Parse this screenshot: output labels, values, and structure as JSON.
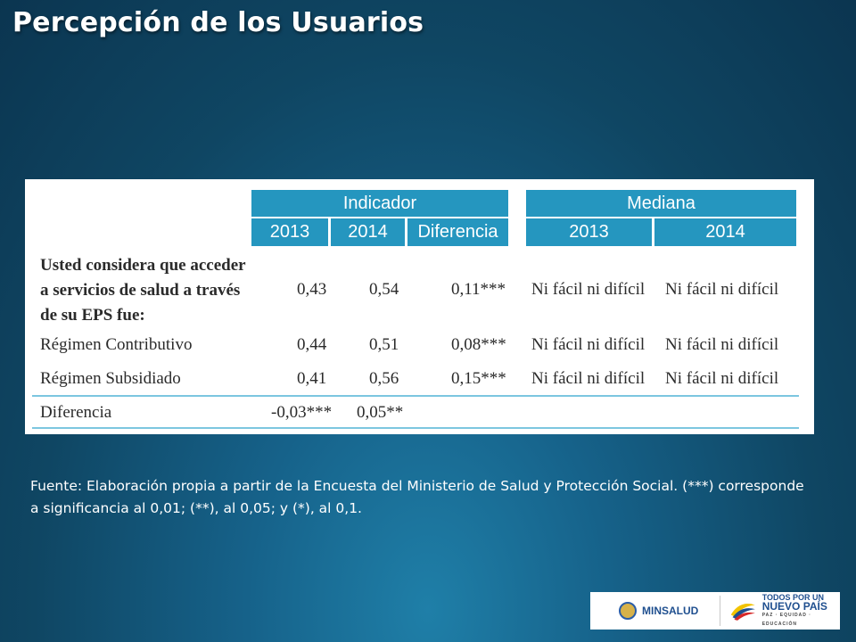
{
  "title": "Percepción de los Usuarios",
  "table": {
    "group_indicador": "Indicador",
    "group_mediana": "Mediana",
    "col_ind_2013": "2013",
    "col_ind_2014": "2014",
    "col_diferencia": "Diferencia",
    "col_med_2013": "2013",
    "col_med_2014": "2014",
    "rows": [
      {
        "label": "Usted considera que acceder a servicios de salud a través de su EPS fue:",
        "v2013": "0,43",
        "v2014": "0,54",
        "dif": "0,11***",
        "m2013": "Ni fácil ni difícil",
        "m2014": "Ni fácil ni difícil"
      },
      {
        "label": "Régimen Contributivo",
        "v2013": "0,44",
        "v2014": "0,51",
        "dif": "0,08***",
        "m2013": "Ni fácil ni difícil",
        "m2014": "Ni fácil ni difícil"
      },
      {
        "label": "Régimen Subsidiado",
        "v2013": "0,41",
        "v2014": "0,56",
        "dif": "0,15***",
        "m2013": "Ni fácil ni difícil",
        "m2014": "Ni fácil ni difícil"
      },
      {
        "label": "Diferencia",
        "v2013": "-0,03***",
        "v2014": "0,05**",
        "dif": "",
        "m2013": "",
        "m2014": ""
      }
    ],
    "row0_label_lines": [
      "Usted considera que acceder",
      "a servicios de salud a través",
      "de su EPS fue:"
    ]
  },
  "source": "Fuente: Elaboración propia a partir de la Encuesta del Ministerio de Salud y Protección Social. (***) corresponde a significancia al 0,01; (**), al 0,05; y (*), al 0,1.",
  "logos": {
    "minsalud": "MINSALUD",
    "tpup_line1": "TODOS POR UN",
    "tpup_line2": "NUEVO PAÍS",
    "tpup_line3": "PAZ · EQUIDAD · EDUCACIÓN"
  },
  "colors": {
    "header_blue": "#2596bf",
    "separator": "#7cc6e0",
    "bg_dark": "#0b3550"
  }
}
